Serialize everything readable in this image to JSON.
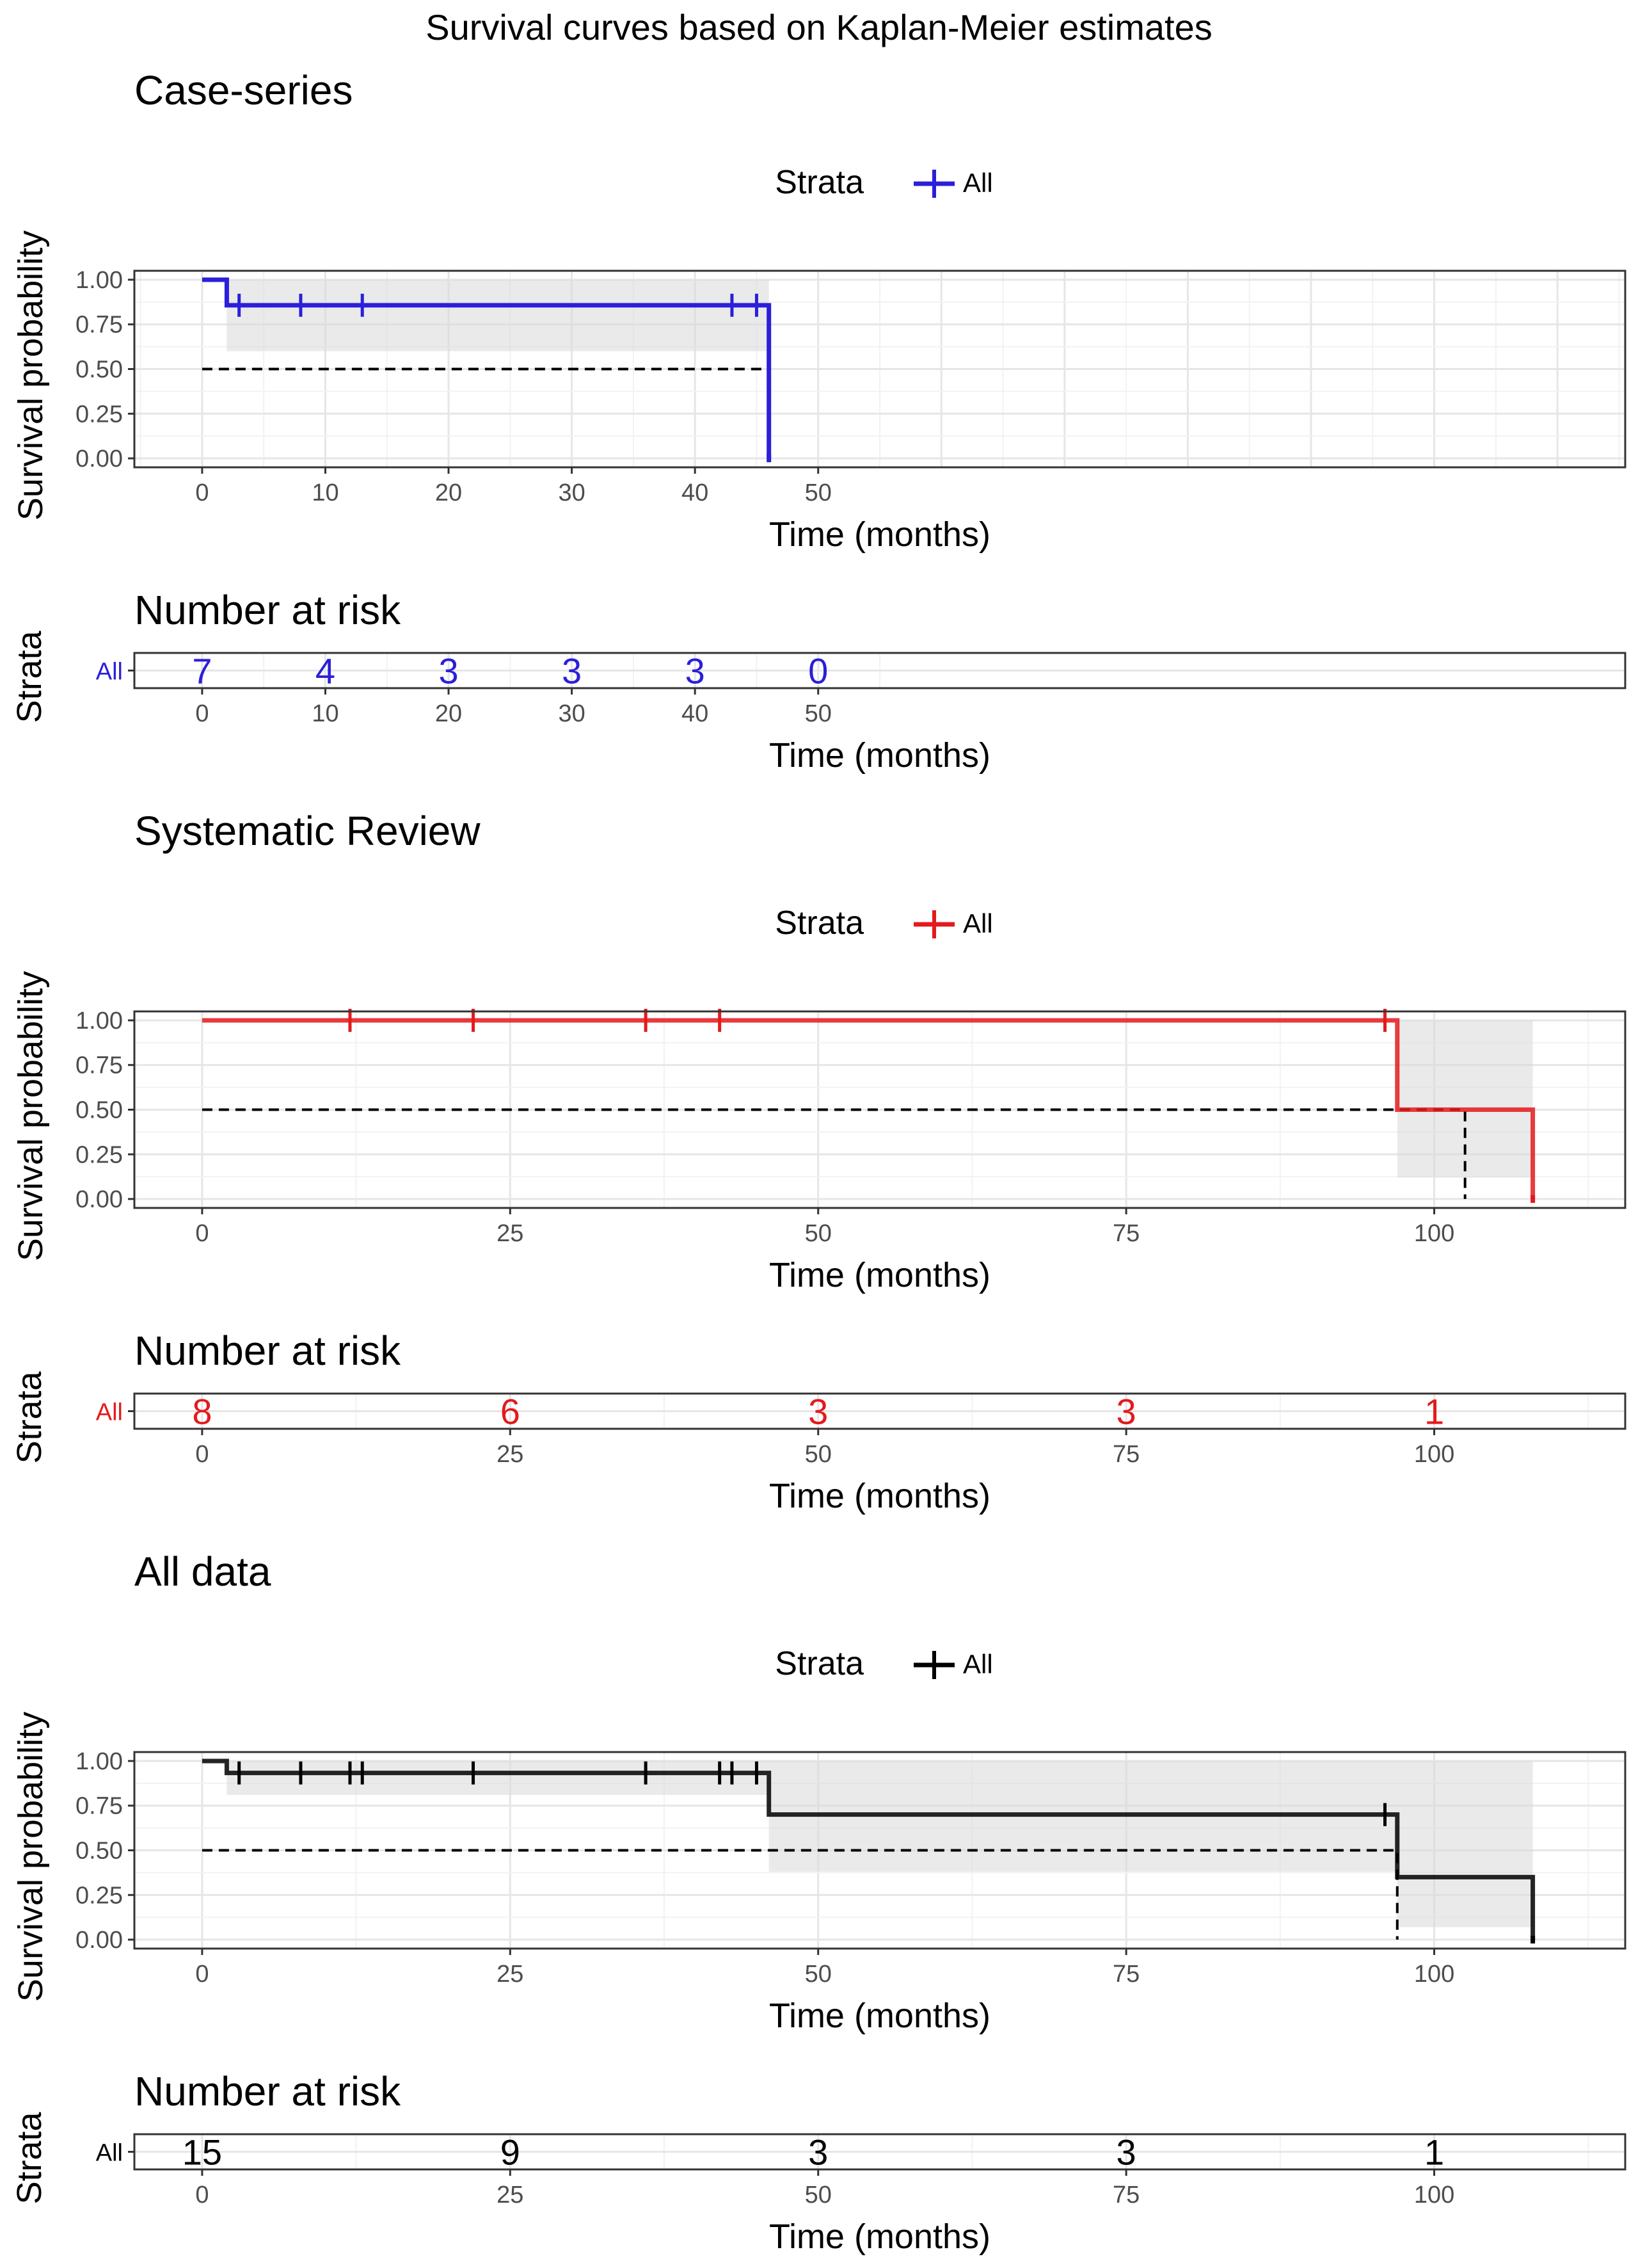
{
  "figure": {
    "title": "Survival curves based on Kaplan-Meier estimates"
  },
  "panels": [
    {
      "title": "Case-series",
      "color": "#2B1FD9",
      "legend": {
        "title": "Strata",
        "label": "All"
      },
      "risk_title": "Number at risk",
      "risk_strata_label": "All"
    },
    {
      "title": "Systematic Review",
      "color": "#E41A1C",
      "legend": {
        "title": "Strata",
        "label": "All"
      },
      "risk_title": "Number at risk",
      "risk_strata_label": "All"
    },
    {
      "title": "All data",
      "color": "#000000",
      "legend": {
        "title": "Strata",
        "label": "All"
      },
      "risk_title": "Number at risk",
      "risk_strata_label": "All"
    }
  ],
  "chart_data": [
    {
      "type": "line",
      "subtype": "kaplan-meier-step",
      "title": "Case-series",
      "xlabel": "Time (months)",
      "ylabel": "Survival probability",
      "xlim": [
        -5.5,
        115.5
      ],
      "ylim": [
        -0.05,
        1.05
      ],
      "xticks": [
        0,
        10,
        20,
        30,
        40,
        50
      ],
      "yticks": [
        "0.00",
        "0.25",
        "0.50",
        "0.75",
        "1.00"
      ],
      "grid": true,
      "legend_position": "top",
      "series": [
        {
          "name": "All",
          "steps": [
            [
              0,
              1.0
            ],
            [
              2,
              0.857
            ],
            [
              46,
              0.0
            ]
          ],
          "ci": [
            [
              0,
              1.0,
              1.0
            ],
            [
              2,
              1.0,
              0.6
            ],
            [
              46,
              1.0,
              0.6
            ]
          ],
          "censored": [
            3,
            8,
            13,
            43,
            45
          ],
          "censored_y": [
            0.857,
            0.857,
            0.857,
            0.857,
            0.857
          ]
        }
      ],
      "median_line": {
        "y": 0.5,
        "x_end": 46
      },
      "risk_table": {
        "title": "Number at risk",
        "ylabel": "Strata",
        "xlabel": "Time (months)",
        "times": [
          0,
          10,
          20,
          30,
          40,
          50
        ],
        "counts": [
          7,
          4,
          3,
          3,
          3,
          0
        ]
      }
    },
    {
      "type": "line",
      "subtype": "kaplan-meier-step",
      "title": "Systematic Review",
      "xlabel": "Time (months)",
      "ylabel": "Survival probability",
      "xlim": [
        -5.5,
        115.5
      ],
      "ylim": [
        -0.05,
        1.05
      ],
      "xticks": [
        0,
        25,
        50,
        75,
        100
      ],
      "yticks": [
        "0.00",
        "0.25",
        "0.50",
        "0.75",
        "1.00"
      ],
      "grid": true,
      "legend_position": "top",
      "series": [
        {
          "name": "All",
          "steps": [
            [
              0,
              1.0
            ],
            [
              97,
              0.5
            ],
            [
              108,
              0.0
            ]
          ],
          "ci": [
            [
              0,
              1.0,
              1.0
            ],
            [
              97,
              1.0,
              0.12
            ],
            [
              108,
              1.0,
              0.12
            ]
          ],
          "censored": [
            12,
            22,
            36,
            42,
            96
          ],
          "censored_y": [
            1.0,
            1.0,
            1.0,
            1.0,
            1.0
          ]
        }
      ],
      "median_line": {
        "y": 0.5,
        "x_end": 102.5
      },
      "risk_table": {
        "title": "Number at risk",
        "ylabel": "Strata",
        "xlabel": "Time (months)",
        "times": [
          0,
          25,
          50,
          75,
          100
        ],
        "counts": [
          8,
          6,
          3,
          3,
          1
        ]
      }
    },
    {
      "type": "line",
      "subtype": "kaplan-meier-step",
      "title": "All data",
      "xlabel": "Time (months)",
      "ylabel": "Survival probability",
      "xlim": [
        -5.5,
        115.5
      ],
      "ylim": [
        -0.05,
        1.05
      ],
      "xticks": [
        0,
        25,
        50,
        75,
        100
      ],
      "yticks": [
        "0.00",
        "0.25",
        "0.50",
        "0.75",
        "1.00"
      ],
      "grid": true,
      "legend_position": "top",
      "series": [
        {
          "name": "All",
          "steps": [
            [
              0,
              1.0
            ],
            [
              2,
              0.933
            ],
            [
              46,
              0.7
            ],
            [
              97,
              0.35
            ],
            [
              108,
              0.0
            ]
          ],
          "ci": [
            [
              0,
              1.0,
              1.0
            ],
            [
              2,
              1.0,
              0.81
            ],
            [
              46,
              1.0,
              0.38
            ],
            [
              97,
              1.0,
              0.07
            ],
            [
              108,
              1.0,
              0.07
            ]
          ],
          "censored": [
            3,
            8,
            12,
            13,
            22,
            36,
            42,
            43,
            45,
            96
          ],
          "censored_y": [
            0.933,
            0.933,
            0.933,
            0.933,
            0.933,
            0.933,
            0.933,
            0.933,
            0.933,
            0.7
          ]
        }
      ],
      "median_line": {
        "y": 0.5,
        "x_end": 97
      },
      "risk_table": {
        "title": "Number at risk",
        "ylabel": "Strata",
        "xlabel": "Time (months)",
        "times": [
          0,
          25,
          50,
          75,
          100
        ],
        "counts": [
          15,
          9,
          3,
          3,
          1
        ]
      }
    }
  ]
}
